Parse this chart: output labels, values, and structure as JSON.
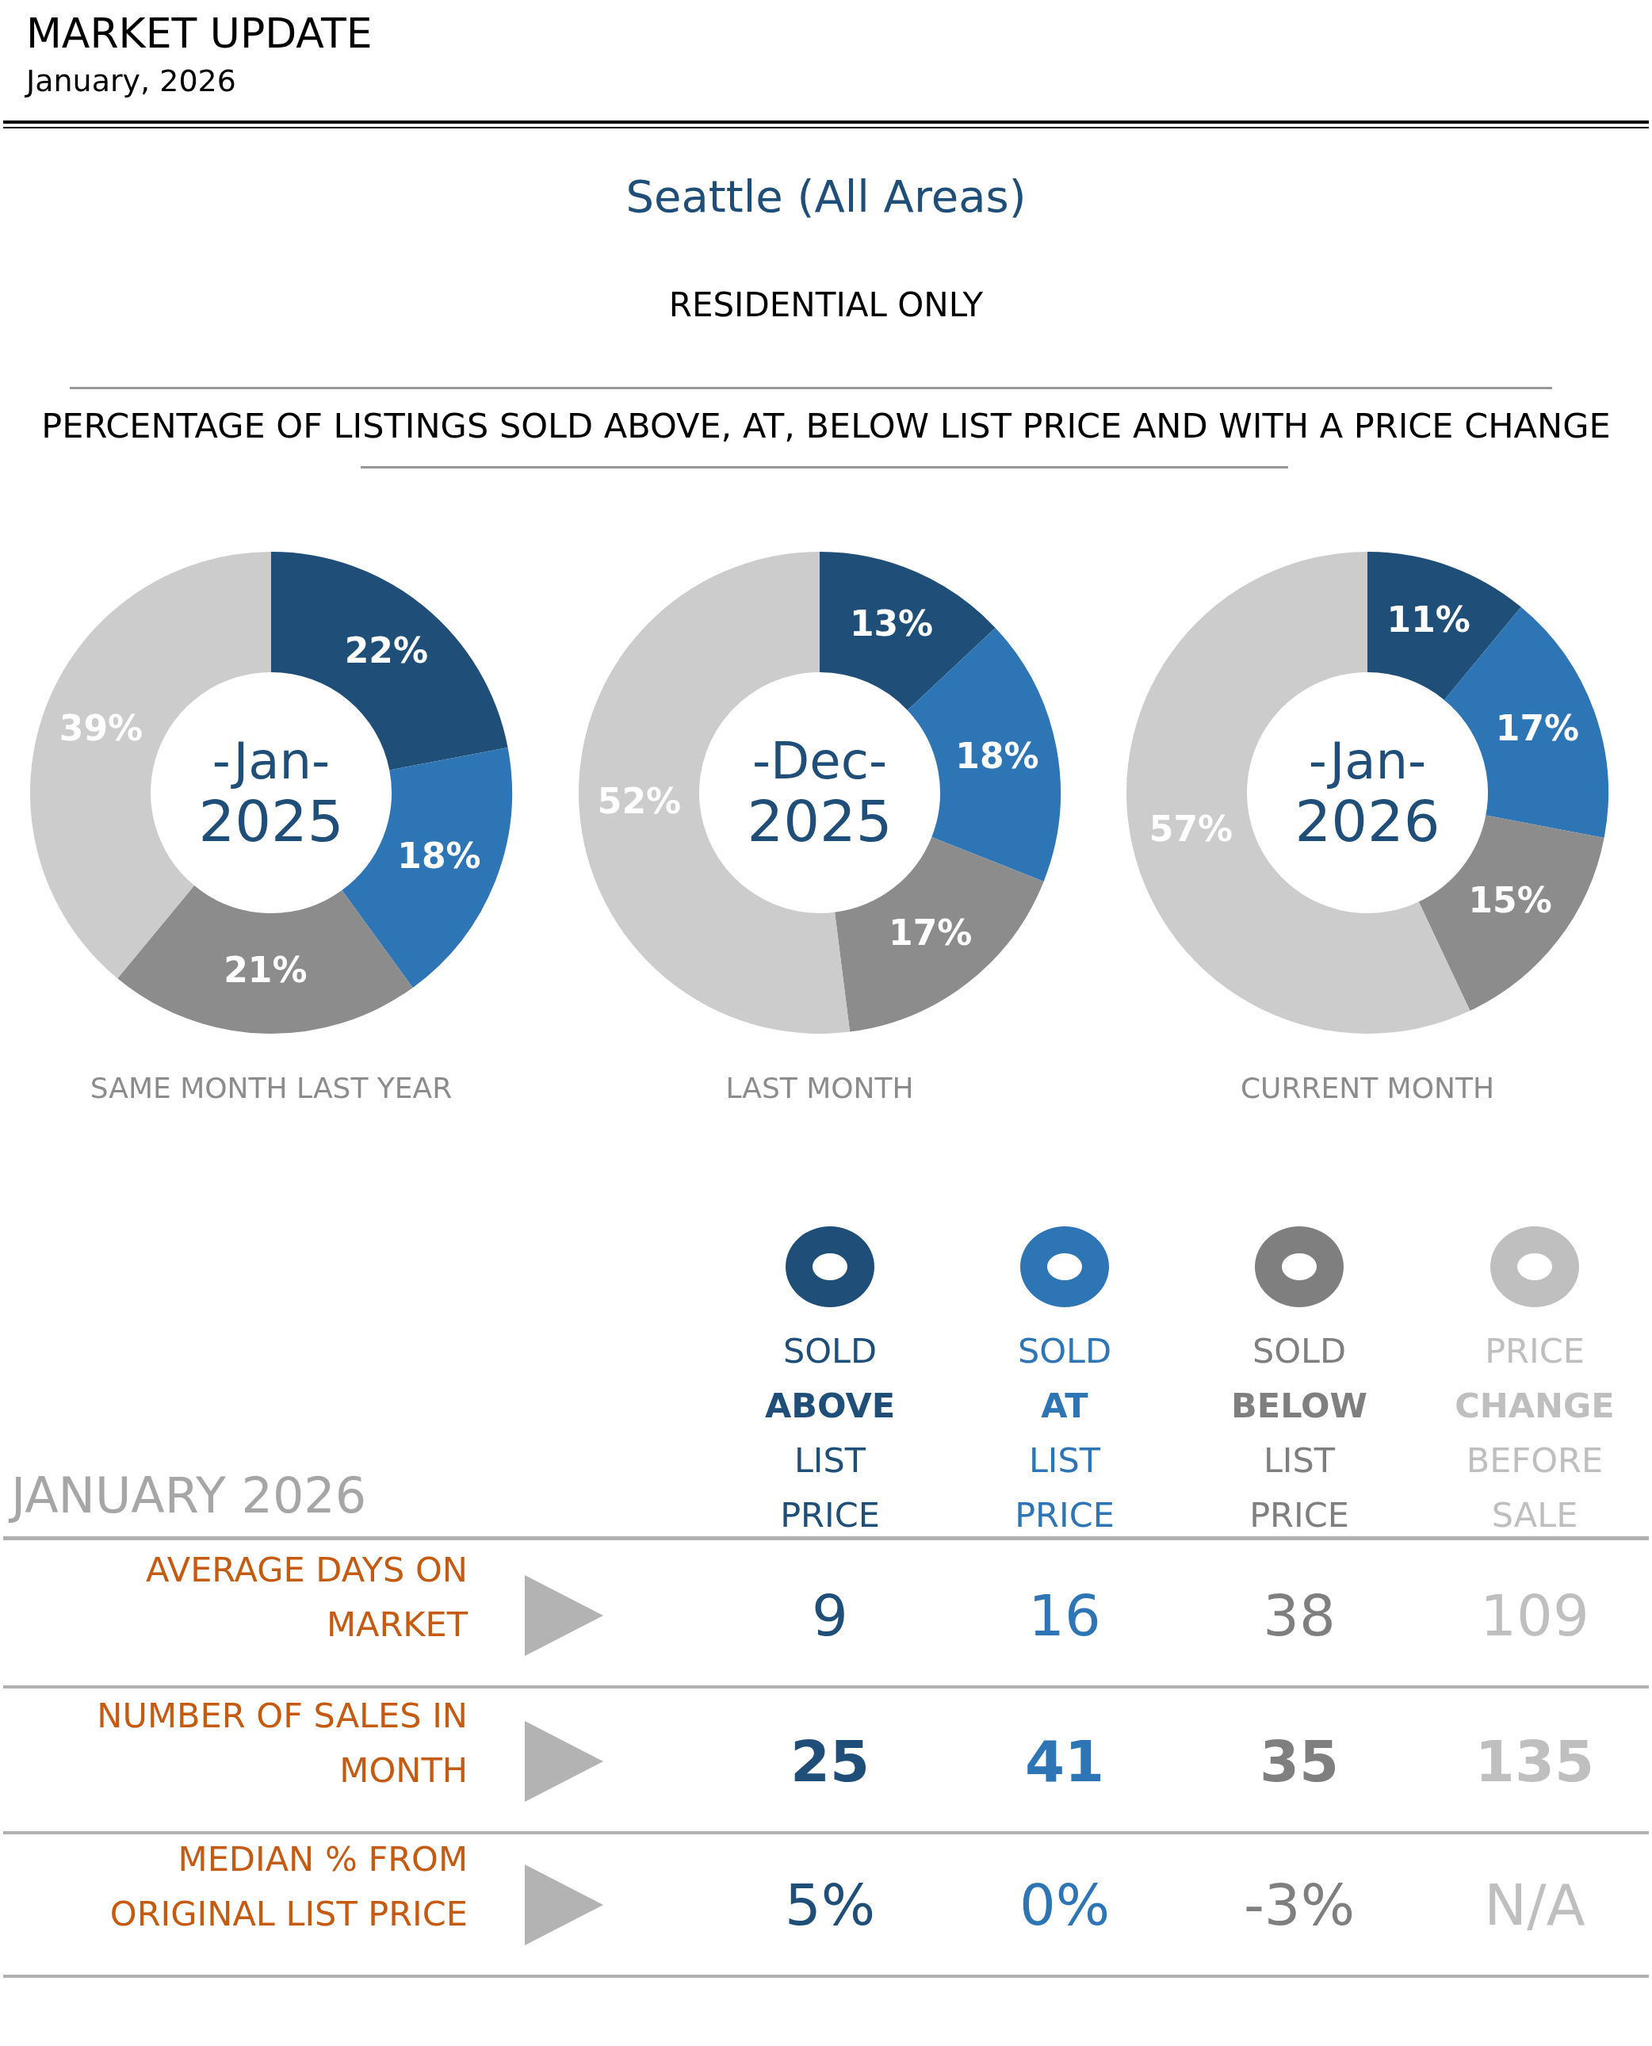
{
  "chart_data": [
    {
      "type": "other",
      "title": "MARKET UPDATE",
      "subtitle": "January, 2026",
      "annotations": [
        "Seattle (All Areas)",
        "RESIDENTIAL ONLY",
        "PERCENTAGE OF LISTINGS SOLD ABOVE, AT, BELOW LIST PRICE AND WITH A PRICE CHANGE"
      ]
    },
    {
      "type": "donut",
      "title": "-Jan-",
      "subtitle": "2025",
      "annotations": [
        "SAME MONTH LAST YEAR"
      ],
      "categories": [
        null,
        null,
        null,
        null
      ],
      "values": [
        22,
        18,
        21,
        39
      ],
      "colors": [
        "#1f4e79",
        "#2e75b6",
        "#8c8c8c",
        "#cccccc"
      ],
      "value_labels": [
        "22%",
        "18%",
        "21%",
        "39%"
      ]
    },
    {
      "type": "donut",
      "title": "-Dec-",
      "subtitle": "2025",
      "annotations": [
        "LAST MONTH"
      ],
      "categories": [
        null,
        null,
        null,
        null
      ],
      "values": [
        13,
        18,
        17,
        52
      ],
      "colors": [
        "#1f4e79",
        "#2e75b6",
        "#8c8c8c",
        "#cccccc"
      ],
      "value_labels": [
        "13%",
        "18%",
        "17%",
        "52%"
      ]
    },
    {
      "type": "donut",
      "title": "-Jan-",
      "subtitle": "2026",
      "annotations": [
        "CURRENT MONTH"
      ],
      "categories": [
        null,
        null,
        null,
        null
      ],
      "values": [
        11,
        17,
        15,
        57
      ],
      "colors": [
        "#1f4e79",
        "#2e75b6",
        "#8c8c8c",
        "#cccccc"
      ],
      "value_labels": [
        "11%",
        "17%",
        "15%",
        "57%"
      ]
    },
    {
      "type": "other",
      "title": "JANUARY 2026",
      "categories": [
        "SOLD ABOVE LIST PRICE",
        "SOLD AT LIST PRICE",
        "SOLD BELOW LIST PRICE",
        "PRICE CHANGE BEFORE SALE"
      ],
      "y_categories": [
        "AVERAGE DAYS ON MARKET",
        "NUMBER OF SALES IN MONTH",
        "MEDIAN % FROM ORIGINAL LIST PRICE"
      ],
      "colors": [
        "#1f4e79",
        "#2e75b6",
        "#7f7f7f",
        "#bfbfbf"
      ],
      "cell_labels": [
        [
          "9",
          "16",
          "38",
          "109"
        ],
        [
          "25",
          "41",
          "35",
          "135"
        ],
        [
          "5%",
          "0%",
          "-3%",
          "N/A"
        ]
      ]
    }
  ]
}
